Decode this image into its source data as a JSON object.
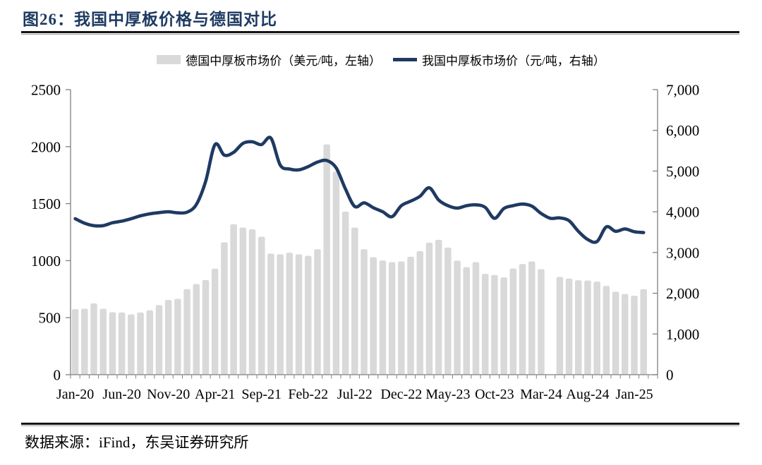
{
  "page": {
    "title": "图26：我国中厚板价格与德国对比",
    "source": "数据来源：iFind，东吴证券研究所"
  },
  "legend": {
    "items": [
      {
        "label": "德国中厚板市场价（美元/吨，左轴）",
        "marker": "bar-swatch",
        "color": "#d9d9d9"
      },
      {
        "label": "我国中厚板市场价（元/吨，右轴）",
        "marker": "line-swatch",
        "color": "#1f3a62"
      }
    ]
  },
  "chart_data": {
    "type": "bar",
    "title": "我国中厚板价格与德国对比",
    "x": [
      "Jan-20",
      "Feb-20",
      "Mar-20",
      "Apr-20",
      "May-20",
      "Jun-20",
      "Jul-20",
      "Aug-20",
      "Sep-20",
      "Oct-20",
      "Nov-20",
      "Dec-20",
      "Jan-21",
      "Feb-21",
      "Mar-21",
      "Apr-21",
      "May-21",
      "Jun-21",
      "Jul-21",
      "Aug-21",
      "Sep-21",
      "Oct-21",
      "Nov-21",
      "Dec-21",
      "Jan-22",
      "Feb-22",
      "Mar-22",
      "Apr-22",
      "May-22",
      "Jun-22",
      "Jul-22",
      "Aug-22",
      "Sep-22",
      "Oct-22",
      "Nov-22",
      "Dec-22",
      "Jan-23",
      "Feb-23",
      "Mar-23",
      "Apr-23",
      "May-23",
      "Jun-23",
      "Jul-23",
      "Aug-23",
      "Sep-23",
      "Oct-23",
      "Nov-23",
      "Dec-23",
      "Jan-24",
      "Feb-24",
      "Mar-24",
      "Apr-24",
      "May-24",
      "Jun-24",
      "Jul-24",
      "Aug-24",
      "Sep-24",
      "Oct-24",
      "Nov-24",
      "Dec-24",
      "Jan-25",
      "Feb-25"
    ],
    "x_tick_labels": [
      "Jan-20",
      "Jun-20",
      "Nov-20",
      "Apr-21",
      "Sep-21",
      "Feb-22",
      "Jul-22",
      "Dec-22",
      "May-23",
      "Oct-23",
      "Mar-24",
      "Aug-24",
      "Jan-25"
    ],
    "x_label_every": 5,
    "series": [
      {
        "name": "德国中厚板市场价（美元/吨，左轴）",
        "type": "bar",
        "axis": "left",
        "color": "#d9d9d9",
        "values": [
          575,
          578,
          625,
          578,
          548,
          545,
          528,
          545,
          565,
          610,
          655,
          665,
          750,
          795,
          830,
          930,
          1160,
          1320,
          1290,
          1275,
          1210,
          1062,
          1056,
          1070,
          1056,
          1043,
          1100,
          2020,
          1780,
          1430,
          1290,
          1100,
          1030,
          1002,
          987,
          993,
          1034,
          1084,
          1158,
          1183,
          1115,
          1000,
          943,
          987,
          884,
          874,
          853,
          931,
          971,
          993,
          925,
          null,
          857,
          843,
          828,
          825,
          816,
          778,
          728,
          708,
          692,
          750
        ]
      },
      {
        "name": "我国中厚板市场价（元/吨，右轴）",
        "type": "line",
        "axis": "right",
        "color": "#1f3a62",
        "values": [
          3830,
          3720,
          3660,
          3660,
          3730,
          3770,
          3830,
          3900,
          3950,
          3980,
          4000,
          3975,
          3990,
          4180,
          4750,
          5650,
          5390,
          5460,
          5680,
          5720,
          5650,
          5810,
          5150,
          5050,
          5030,
          5110,
          5220,
          5260,
          5080,
          4560,
          4130,
          4220,
          4100,
          4000,
          3880,
          4150,
          4260,
          4380,
          4590,
          4290,
          4150,
          4090,
          4150,
          4170,
          4110,
          3840,
          4080,
          4150,
          4190,
          4140,
          3960,
          3840,
          3850,
          3780,
          3520,
          3320,
          3270,
          3630,
          3520,
          3580,
          3510,
          3490
        ]
      }
    ],
    "left_axis": {
      "min": 0,
      "max": 2500,
      "step": 500,
      "tick_labels": [
        "0",
        "500",
        "1000",
        "1500",
        "2000",
        "2500"
      ]
    },
    "right_axis": {
      "min": 0,
      "max": 7000,
      "step": 1000,
      "tick_labels": [
        "0",
        "1,000",
        "2,000",
        "3,000",
        "4,000",
        "5,000",
        "6,000",
        "7,000"
      ]
    },
    "grid": false,
    "legend_position": "top"
  }
}
